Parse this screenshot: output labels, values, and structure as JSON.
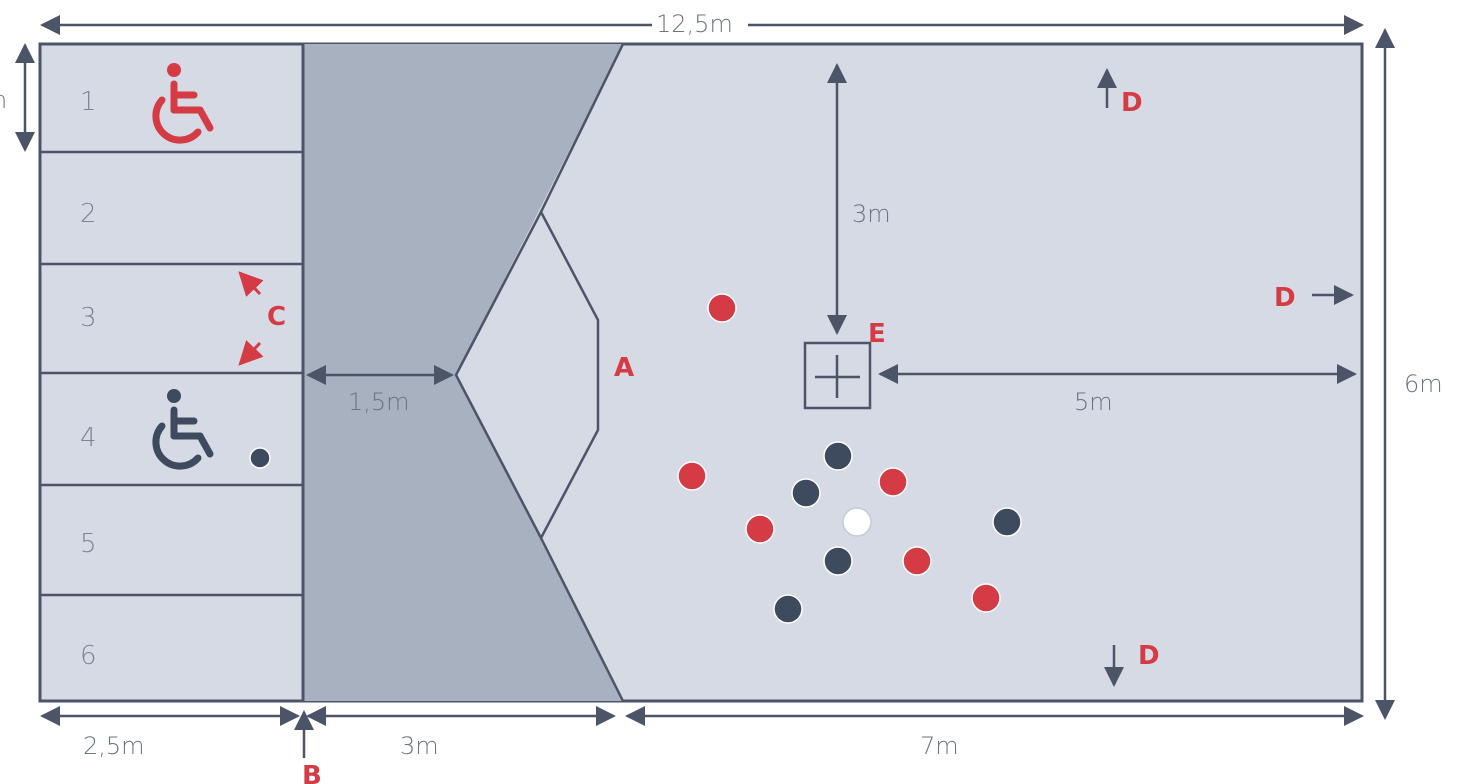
{
  "colors": {
    "court_fill": "#d6dae5",
    "zone_dark": "#a8b1c0",
    "line": "#4c5568",
    "red": "#d43b44",
    "navy": "#3e4a5e",
    "white_ball": "#ffffff"
  },
  "dimensions": {
    "total_length": "12,5m",
    "total_width": "6m",
    "box_depth": "2,5m",
    "zone_depth": "3m",
    "play_area_length": "7m",
    "to_v_line": "1,5m",
    "cross_to_side": "3m",
    "cross_to_back": "5m",
    "box_width_partial": "n"
  },
  "boxes": [
    {
      "number": "1",
      "icon": "wheelchair-icon-red"
    },
    {
      "number": "2"
    },
    {
      "number": "3"
    },
    {
      "number": "4",
      "icon": "wheelchair-icon-navy"
    },
    {
      "number": "5"
    },
    {
      "number": "6"
    }
  ],
  "labels": {
    "A": "A",
    "B": "B",
    "C": "C",
    "D_top": "D",
    "D_right": "D",
    "D_bottom": "D",
    "E": "E"
  }
}
